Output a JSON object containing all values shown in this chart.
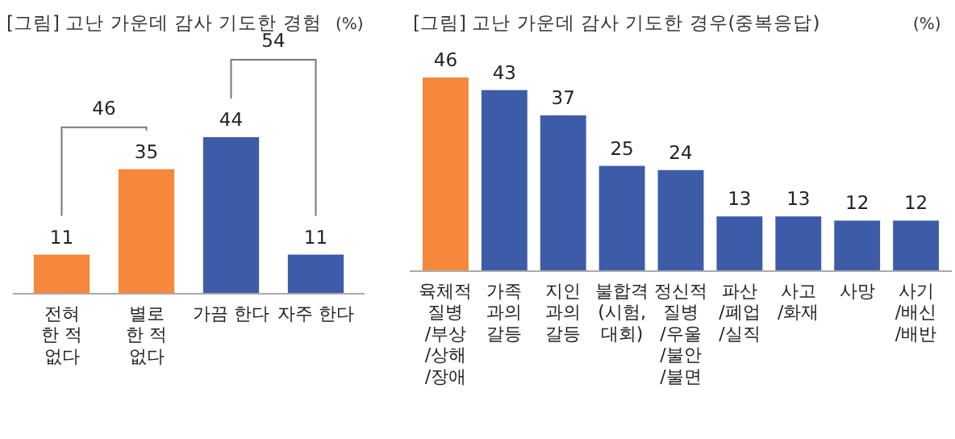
{
  "chart_data": [
    {
      "type": "bar",
      "title": "[그림] 고난 가운데 감사 기도한 경험",
      "ylabel": "(%)",
      "categories": [
        "전혀\n한 적\n없다",
        "별로\n한 적\n없다",
        "가끔 한다",
        "자주 한다"
      ],
      "values": [
        11,
        35,
        44,
        11
      ],
      "colors": [
        "#f5883a",
        "#f5883a",
        "#3d5ca8",
        "#3d5ca8"
      ],
      "data_labels": true,
      "annotations": [
        "46",
        "54"
      ]
    },
    {
      "type": "bar",
      "title": "[그림] 고난 가운데 감사 기도한 경우(중복응답)",
      "ylabel": "(%)",
      "categories": [
        "육체적\n질병\n/부상\n/상해\n/장애",
        "가족\n과의\n갈등",
        "지인\n과의\n갈등",
        "불합격\n(시험,\n대회)",
        "정신적\n질병\n/우울\n/불안\n/불면",
        "파산\n/폐업\n/실직",
        "사고\n/화재",
        "사망",
        "사기\n/배신\n/배반"
      ],
      "values": [
        46,
        43,
        37,
        25,
        24,
        13,
        13,
        12,
        12
      ],
      "colors": [
        "#f5883a",
        "#3d5ca8",
        "#3d5ca8",
        "#3d5ca8",
        "#3d5ca8",
        "#3d5ca8",
        "#3d5ca8",
        "#3d5ca8",
        "#3d5ca8"
      ],
      "data_labels": true
    }
  ]
}
